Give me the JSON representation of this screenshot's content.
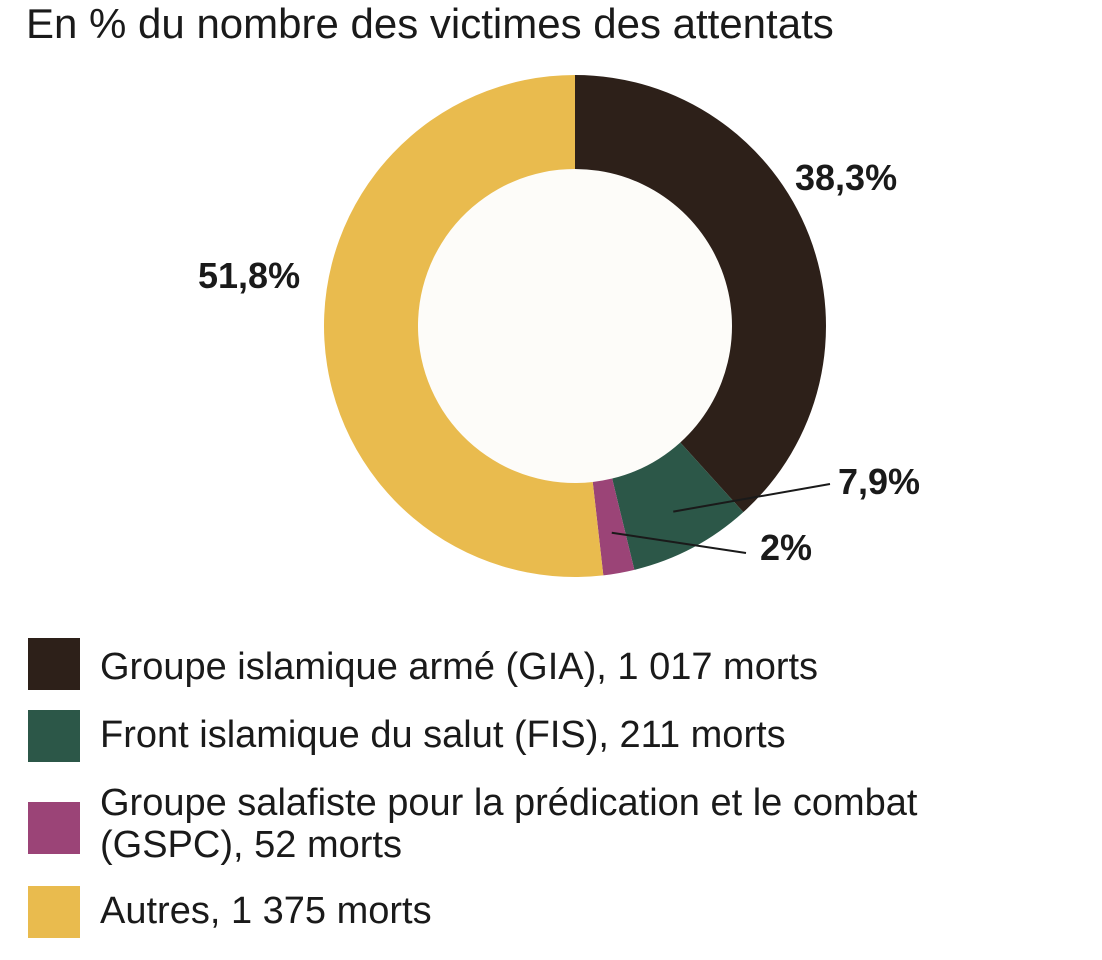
{
  "title": "En % du nombre des victimes des attentats",
  "chart_data": {
    "type": "pie",
    "donut": true,
    "title": "En % du nombre des victimes des attentats",
    "slices": [
      {
        "label": "Groupe islamique armé (GIA), 1 017 morts",
        "value": 38.3,
        "value_label": "38,3%",
        "color": "#2d2019"
      },
      {
        "label": "Front islamique du salut (FIS), 211 morts",
        "value": 7.9,
        "value_label": "7,9%",
        "color": "#2c5748"
      },
      {
        "label": "Groupe salafiste pour la prédication et le combat (GSPC), 52 morts",
        "value": 2,
        "value_label": "2%",
        "color": "#9b4477"
      },
      {
        "label": "Autres, 1 375 morts",
        "value": 51.8,
        "value_label": "51,8%",
        "color": "#e9bb4e"
      }
    ],
    "legend_position": "bottom"
  }
}
